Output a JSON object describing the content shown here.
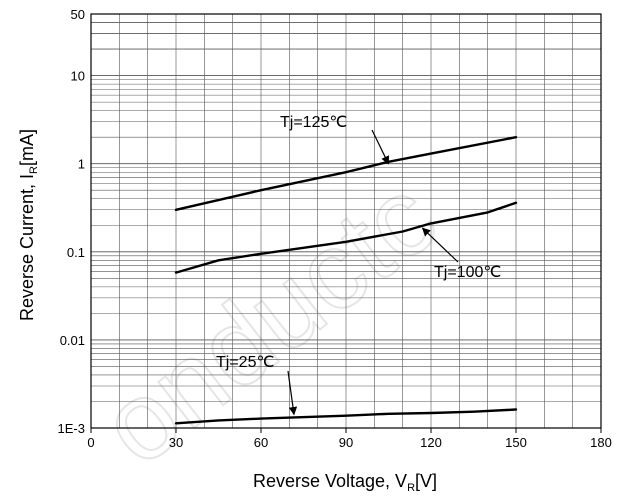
{
  "chart_data": {
    "type": "line",
    "title": "",
    "xlabel": "Reverse Voltage, V",
    "xlabel_sub": "R",
    "xlabel_unit": "[V]",
    "ylabel": "Reverse Current, I",
    "ylabel_sub": "R",
    "ylabel_unit": "[mA]",
    "xlim": [
      0,
      180
    ],
    "ylim": [
      0.001,
      50
    ],
    "yscale": "log",
    "grid": true,
    "x_ticks": [
      0,
      30,
      60,
      90,
      120,
      150,
      180
    ],
    "x_tick_labels": [
      "0",
      "30",
      "60",
      "90",
      "120",
      "150",
      "180"
    ],
    "y_ticks": [
      0.001,
      0.01,
      0.1,
      1,
      10,
      50
    ],
    "y_tick_labels": [
      "1E-3",
      "0.01",
      "0.1",
      "1",
      "10",
      "50"
    ],
    "series": [
      {
        "name": "Tj=125℃",
        "x": [
          30,
          60,
          90,
          105,
          120,
          150
        ],
        "y": [
          0.3,
          0.5,
          0.8,
          1.05,
          1.3,
          2.0
        ]
      },
      {
        "name": "Tj=100℃",
        "x": [
          30,
          45,
          60,
          90,
          110,
          120,
          140,
          150
        ],
        "y": [
          0.058,
          0.08,
          0.095,
          0.13,
          0.17,
          0.21,
          0.28,
          0.36
        ]
      },
      {
        "name": "Tj=25℃",
        "x": [
          30,
          45,
          60,
          90,
          105,
          120,
          135,
          150
        ],
        "y": [
          0.00113,
          0.00122,
          0.00128,
          0.00138,
          0.00145,
          0.00148,
          0.00153,
          0.00162
        ]
      }
    ],
    "annotations": [
      {
        "text": "Tj=125℃",
        "series": "Tj=125℃"
      },
      {
        "text": "Tj=100℃",
        "series": "Tj=100℃"
      },
      {
        "text": "Tj=25℃",
        "series": "Tj=25℃"
      }
    ]
  },
  "watermark": "onductc"
}
